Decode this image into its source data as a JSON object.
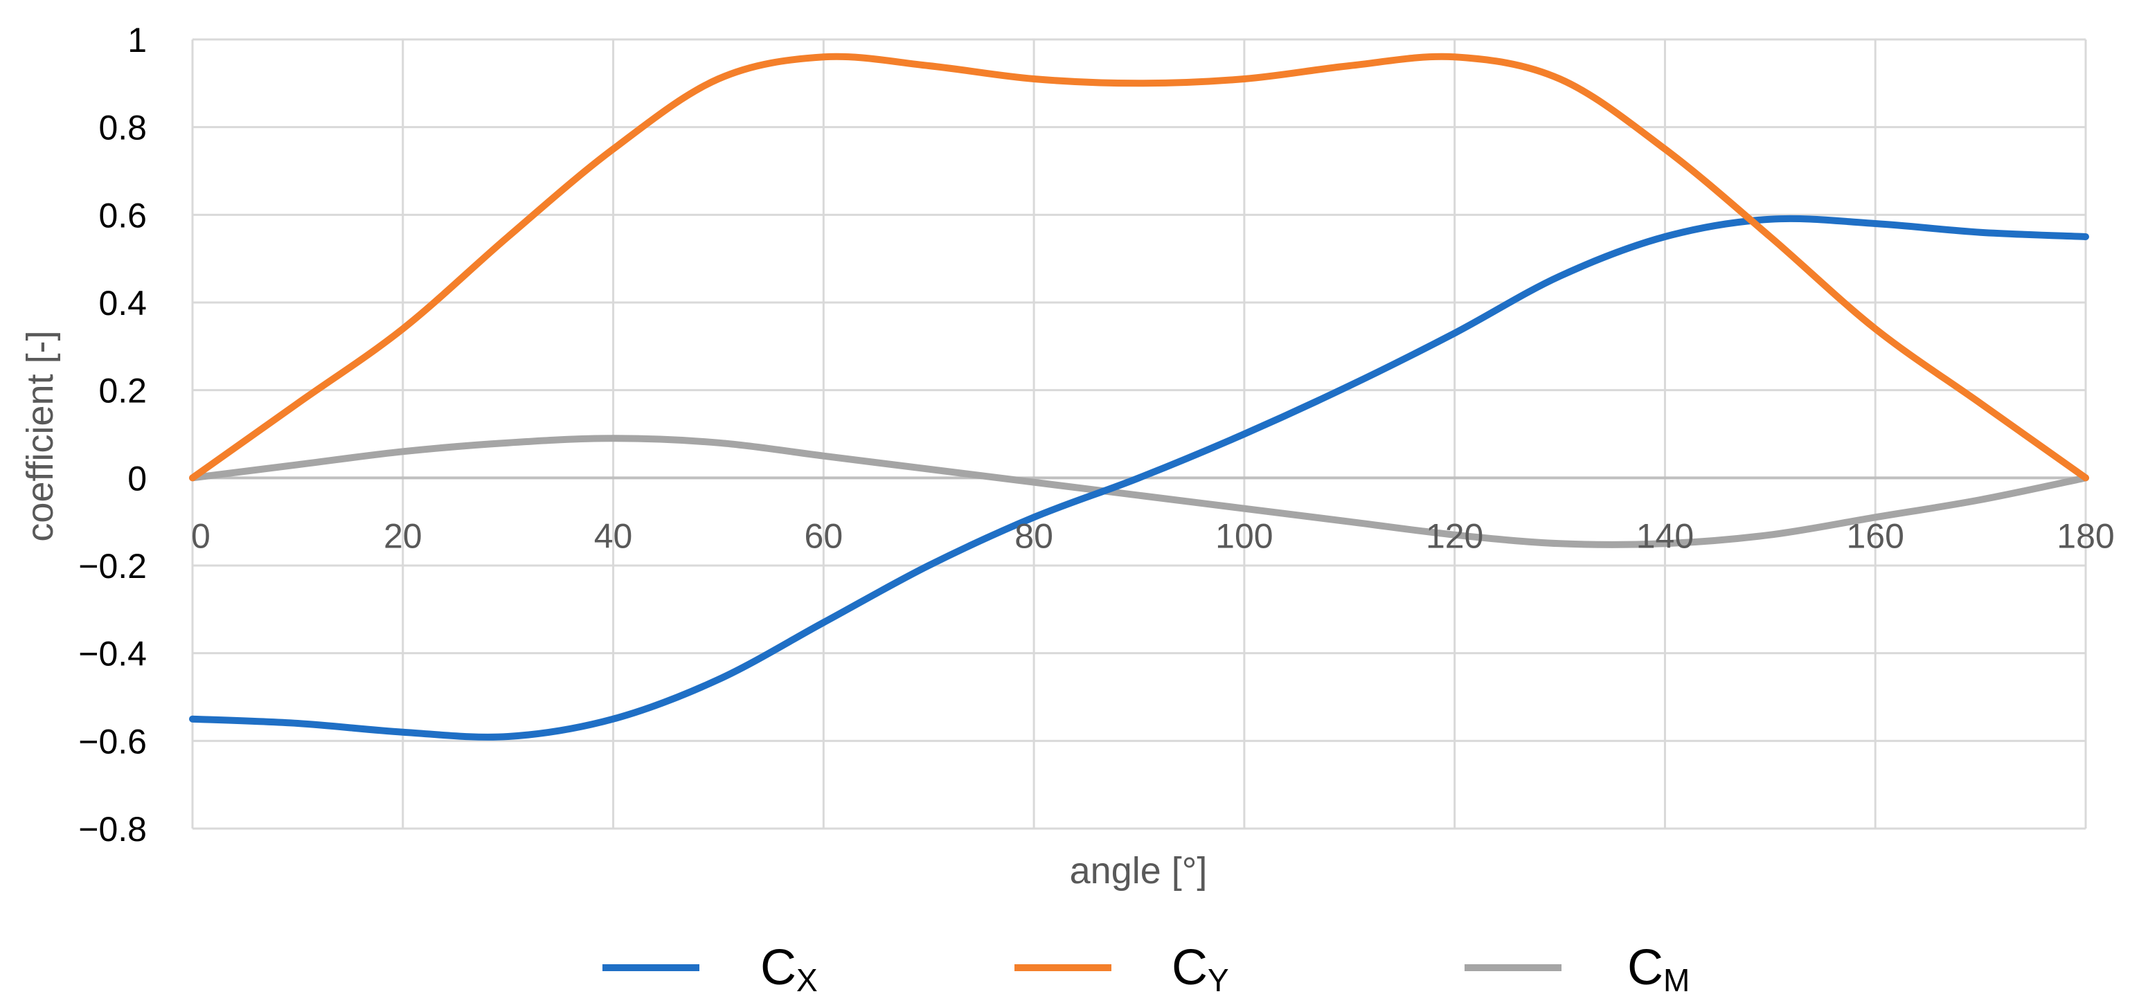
{
  "chart_data": {
    "type": "line",
    "title": "",
    "xlabel": "angle [°]",
    "ylabel": "coefficient [-]",
    "xlim": [
      0,
      180
    ],
    "ylim": [
      -0.8,
      1
    ],
    "x_ticks": [
      "0",
      "20",
      "40",
      "60",
      "80",
      "100",
      "120",
      "140",
      "160",
      "180"
    ],
    "y_ticks": [
      "1",
      "0.8",
      "0.6",
      "0.4",
      "0.2",
      "0",
      "−0.2",
      "−0.4",
      "−0.6",
      "−0.8"
    ],
    "grid": true,
    "legend_position": "bottom",
    "x": [
      0,
      10,
      20,
      30,
      40,
      50,
      60,
      70,
      80,
      90,
      100,
      110,
      120,
      130,
      140,
      150,
      160,
      170,
      180
    ],
    "series": [
      {
        "name_main": "C",
        "name_sub": "X",
        "color": "#1F6FC5",
        "values": [
          -0.55,
          -0.56,
          -0.58,
          -0.59,
          -0.55,
          -0.46,
          -0.33,
          -0.2,
          -0.09,
          0.0,
          0.1,
          0.21,
          0.33,
          0.46,
          0.55,
          0.59,
          0.58,
          0.56,
          0.55
        ]
      },
      {
        "name_main": "C",
        "name_sub": "Y",
        "color": "#F47F2A",
        "values": [
          0.0,
          0.17,
          0.34,
          0.55,
          0.75,
          0.91,
          0.96,
          0.94,
          0.91,
          0.9,
          0.91,
          0.94,
          0.96,
          0.91,
          0.75,
          0.55,
          0.34,
          0.17,
          0.0
        ]
      },
      {
        "name_main": "C",
        "name_sub": "M",
        "color": "#A5A5A5",
        "values": [
          0.0,
          0.03,
          0.06,
          0.08,
          0.09,
          0.08,
          0.05,
          0.02,
          -0.01,
          -0.04,
          -0.07,
          -0.1,
          -0.13,
          -0.15,
          -0.15,
          -0.13,
          -0.09,
          -0.05,
          0.0
        ]
      }
    ]
  }
}
